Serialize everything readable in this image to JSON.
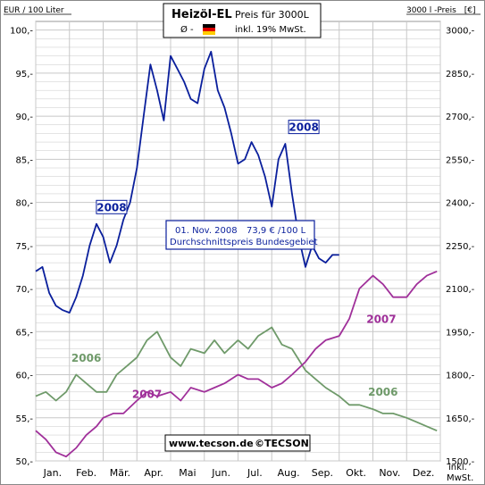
{
  "header": {
    "left_unit": "EUR / 100 Liter",
    "right_unit": "3000 l -Preis",
    "right_unit_bracket": "[€]",
    "title": "Heizöl-EL",
    "subtitle": "Preis für 3000L",
    "avg_symbol": "Ø -",
    "flag_icon": "german-flag-icon",
    "tax_note": "inkl. 19% MwSt.",
    "footer": "www.tecson.de",
    "copyright": "©TECSON",
    "incl_line1": "inkl.",
    "incl_line2": "MwSt."
  },
  "info_box": {
    "date": "01. Nov. 2008",
    "price": "73,9 € /100 L",
    "label": "Durchschnittspreis Bundesgebiet"
  },
  "colors": {
    "s2008": "#0a1f9c",
    "s2007": "#a0309a",
    "s2006": "#6f9a6a",
    "grid": "#c8c8c8",
    "bg": "#ffffff"
  },
  "chart_data": {
    "type": "line",
    "title": "Heizöl-EL",
    "xlabel": "",
    "ylabel": "EUR / 100 Liter",
    "ylim": [
      50,
      101
    ],
    "y_ticks": [
      "100,-",
      "95,-",
      "90,-",
      "85,-",
      "80,-",
      "75,-",
      "70,-",
      "65,-",
      "60,-",
      "55,-",
      "50,-"
    ],
    "y2_ticks": [
      "3000,-",
      "2850,-",
      "2700,-",
      "2550,-",
      "2400,-",
      "2250,-",
      "2100,-",
      "1950,-",
      "1800,-",
      "1650,-",
      "1500,-"
    ],
    "x_ticks": [
      "Jan.",
      "Feb.",
      "Mär.",
      "Apr.",
      "Mai",
      "Jun.",
      "Jul.",
      "Aug.",
      "Sep.",
      "Okt.",
      "Nov.",
      "Dez."
    ],
    "grid": true,
    "series": [
      {
        "name": "2008",
        "x": [
          1.0,
          1.2,
          1.4,
          1.6,
          1.8,
          2.0,
          2.2,
          2.4,
          2.6,
          2.8,
          3.0,
          3.2,
          3.4,
          3.6,
          3.8,
          4.0,
          4.2,
          4.4,
          4.6,
          4.8,
          5.0,
          5.2,
          5.4,
          5.6,
          5.8,
          6.0,
          6.2,
          6.4,
          6.6,
          6.8,
          7.0,
          7.2,
          7.4,
          7.6,
          7.8,
          8.0,
          8.2,
          8.4,
          8.6,
          8.8,
          9.0,
          9.2,
          9.4,
          9.6,
          9.8,
          10.0
        ],
        "values": [
          72.0,
          72.5,
          69.5,
          68.0,
          67.5,
          67.2,
          69.0,
          71.5,
          75.0,
          77.5,
          76.0,
          73.0,
          75.0,
          78.0,
          80.0,
          84.0,
          90.0,
          96.0,
          93.0,
          89.5,
          97.0,
          95.5,
          94.0,
          92.0,
          91.5,
          95.5,
          97.5,
          93.0,
          91.0,
          88.0,
          84.5,
          85.0,
          87.0,
          85.5,
          83.0,
          79.5,
          85.0,
          86.8,
          81.0,
          76.0,
          72.5,
          75.0,
          73.5,
          73.0,
          73.9,
          73.9
        ]
      },
      {
        "name": "2007",
        "x": [
          1.0,
          1.3,
          1.6,
          1.9,
          2.2,
          2.5,
          2.8,
          3.0,
          3.3,
          3.6,
          4.0,
          4.3,
          4.6,
          5.0,
          5.3,
          5.6,
          6.0,
          6.3,
          6.6,
          7.0,
          7.3,
          7.6,
          8.0,
          8.3,
          8.6,
          9.0,
          9.3,
          9.6,
          10.0,
          10.3,
          10.6,
          11.0,
          11.3,
          11.6,
          12.0,
          12.3,
          12.6,
          12.9
        ],
        "values": [
          53.5,
          52.5,
          51.0,
          50.5,
          51.5,
          53.0,
          54.0,
          55.0,
          55.5,
          55.5,
          57.0,
          58.0,
          57.5,
          58.0,
          57.0,
          58.5,
          58.0,
          58.5,
          59.0,
          60.0,
          59.5,
          59.5,
          58.5,
          59.0,
          60.0,
          61.5,
          63.0,
          64.0,
          64.5,
          66.5,
          70.0,
          71.5,
          70.5,
          69.0,
          69.0,
          70.5,
          71.5,
          72.0
        ]
      },
      {
        "name": "2006",
        "x": [
          1.0,
          1.3,
          1.6,
          1.9,
          2.2,
          2.5,
          2.8,
          3.1,
          3.4,
          3.7,
          4.0,
          4.3,
          4.6,
          5.0,
          5.3,
          5.6,
          6.0,
          6.3,
          6.6,
          7.0,
          7.3,
          7.6,
          8.0,
          8.3,
          8.6,
          9.0,
          9.3,
          9.6,
          10.0,
          10.3,
          10.6,
          11.0,
          11.3,
          11.6,
          12.0,
          12.3,
          12.6,
          12.9
        ],
        "values": [
          57.5,
          58.0,
          57.0,
          58.0,
          60.0,
          59.0,
          58.0,
          58.0,
          60.0,
          61.0,
          62.0,
          64.0,
          65.0,
          62.0,
          61.0,
          63.0,
          62.5,
          64.0,
          62.5,
          64.0,
          63.0,
          64.5,
          65.5,
          63.5,
          63.0,
          60.5,
          59.5,
          58.5,
          57.5,
          56.5,
          56.5,
          56.0,
          55.5,
          55.5,
          55.0,
          54.5,
          54.0,
          53.5
        ]
      }
    ],
    "series_labels": [
      {
        "series": "2008",
        "text": "2008"
      },
      {
        "series": "2008",
        "text": "2008"
      },
      {
        "series": "2007",
        "text": "2007"
      },
      {
        "series": "2007",
        "text": "2007"
      },
      {
        "series": "2006",
        "text": "2006"
      },
      {
        "series": "2006",
        "text": "2006"
      }
    ]
  }
}
